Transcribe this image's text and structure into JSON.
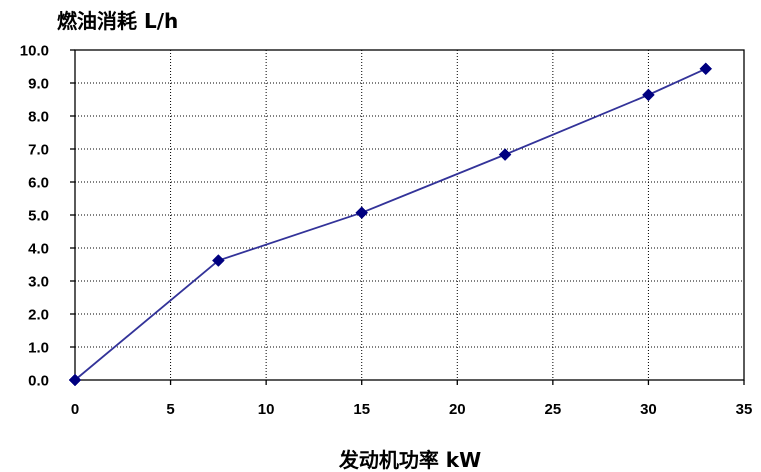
{
  "chart_data": {
    "type": "scatter",
    "title": "",
    "ylabel": "燃油消耗 L/h",
    "xlabel": "发动机功率  kW",
    "xlim": [
      0,
      35
    ],
    "ylim": [
      0,
      10
    ],
    "x_ticks": [
      0,
      5,
      10,
      15,
      20,
      25,
      30,
      35
    ],
    "y_ticks": [
      0,
      1,
      2,
      3,
      4,
      5,
      6,
      7,
      8,
      9,
      10
    ],
    "x_tick_labels": [
      "0",
      "5",
      "10",
      "15",
      "20",
      "25",
      "30",
      "35"
    ],
    "y_tick_labels": [
      "0.0",
      "1.0",
      "2.0",
      "3.0",
      "4.0",
      "5.0",
      "6.0",
      "7.0",
      "8.0",
      "9.0",
      "10.0"
    ],
    "grid": "dotted",
    "legend": "none",
    "series": [
      {
        "x": [
          0,
          7.5,
          15,
          22.5,
          30,
          33
        ],
        "values": [
          0.0,
          3.62,
          5.07,
          6.83,
          8.64,
          9.43
        ],
        "line": true,
        "marker": "diamond",
        "color": "#333399",
        "marker_color": "#000080"
      }
    ]
  }
}
